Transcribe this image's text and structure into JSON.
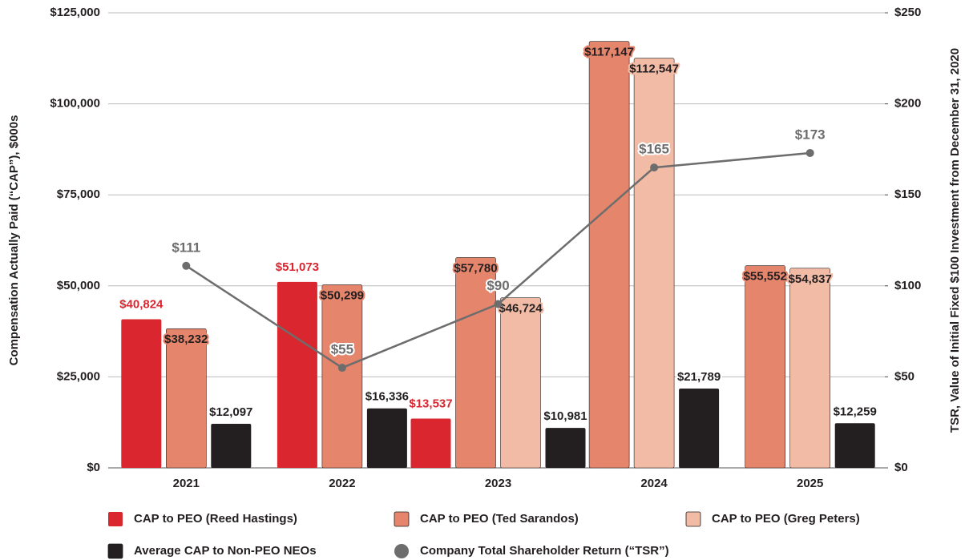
{
  "chart_data": {
    "type": "bar",
    "ylabel": "Compensation Actually Paid (“CAP”), $000s",
    "y2label": "TSR, Value of Initial Fixed $100 Investment from December 31, 2020",
    "categories": [
      "2021",
      "2022",
      "2023",
      "2024",
      "2025"
    ],
    "series": [
      {
        "name": "CAP to PEO (Reed Hastings)",
        "color": "#d9262f",
        "values": [
          40824,
          51073,
          13537,
          null,
          null
        ],
        "value_labels": [
          "$40,824",
          "$51,073",
          "$13,537",
          null,
          null
        ]
      },
      {
        "name": "CAP to PEO (Ted Sarandos)",
        "color": "#e5856b",
        "values": [
          38232,
          50299,
          57780,
          117147,
          55552
        ],
        "value_labels": [
          "$38,232",
          "$50,299",
          "$57,780",
          "$117,147",
          "$55,552"
        ]
      },
      {
        "name": "CAP to PEO (Greg Peters)",
        "color": "#f2bba6",
        "values": [
          null,
          null,
          46724,
          112547,
          54837
        ],
        "value_labels": [
          null,
          null,
          "$46,724",
          "$112,547",
          "$54,837"
        ]
      },
      {
        "name": "Average CAP to Non-PEO NEOs",
        "color": "#231f20",
        "values": [
          12097,
          16336,
          10981,
          21789,
          12259
        ],
        "value_labels": [
          "$12,097",
          "$16,336",
          "$10,981",
          "$21,789",
          "$12,259"
        ]
      },
      {
        "name": "Company Total Shareholder Return (“TSR”)",
        "color": "#6d6d6d",
        "type": "line",
        "axis": "y2",
        "values": [
          111,
          55,
          90,
          165,
          173
        ],
        "value_labels": [
          "$111",
          "$55",
          "$90",
          "$165",
          "$173"
        ]
      }
    ],
    "ylim": [
      0,
      125000
    ],
    "yticks": [
      {
        "value": 0,
        "label": "$0"
      },
      {
        "value": 25000,
        "label": "$25,000"
      },
      {
        "value": 50000,
        "label": "$50,000"
      },
      {
        "value": 75000,
        "label": "$75,000"
      },
      {
        "value": 100000,
        "label": "$100,000"
      },
      {
        "value": 125000,
        "label": "$125,000"
      }
    ],
    "y2lim": [
      0,
      250
    ],
    "y2ticks": [
      {
        "value": 0,
        "label": "$0"
      },
      {
        "value": 50,
        "label": "$50"
      },
      {
        "value": 100,
        "label": "$100"
      },
      {
        "value": 150,
        "label": "$150"
      },
      {
        "value": 200,
        "label": "$200"
      },
      {
        "value": 250,
        "label": "$250"
      }
    ],
    "grid": true
  }
}
